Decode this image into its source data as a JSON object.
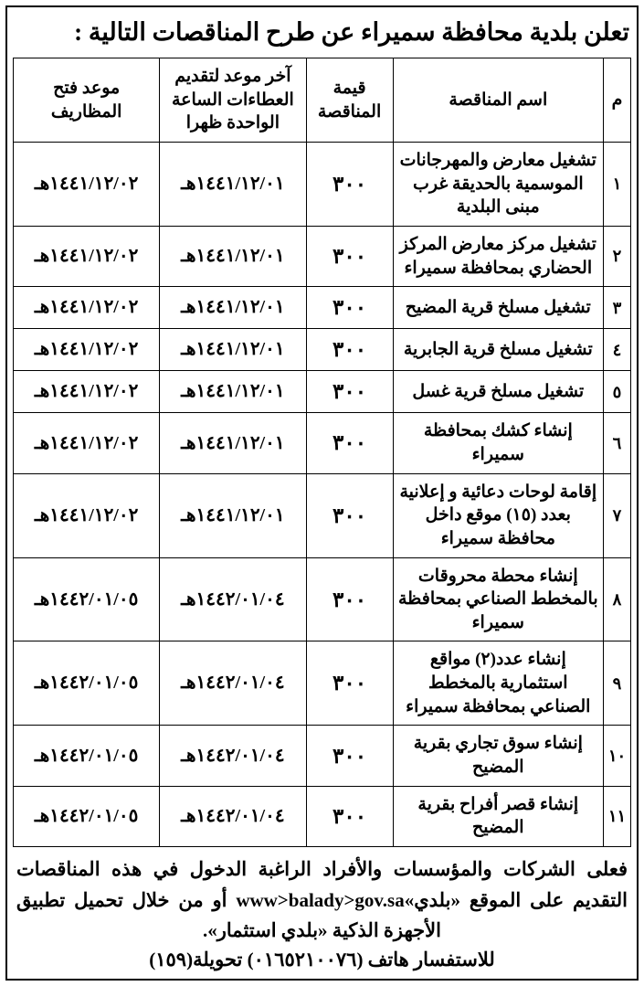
{
  "title": "تعلن بلدية محافظة سميراء عن طرح المناقصات التالية :",
  "headers": {
    "num": "م",
    "name": "اسم المناقصة",
    "value": "قيمة المناقصة",
    "deadline": "آخر موعد لتقديم العطاءات الساعة الواحدة ظهرا",
    "opening": "موعد فتح المظاريف"
  },
  "rows": [
    {
      "num": "١",
      "name": "تشغيل معارض والمهرجانات الموسمية بالحديقة غرب مبنى البلدية",
      "value": "٣٠٠",
      "deadline": "١٤٤١/١٢/٠١هـ",
      "opening": "١٤٤١/١٢/٠٢هـ"
    },
    {
      "num": "٢",
      "name": "تشغيل مركز معارض المركز الحضاري بمحافظة سميراء",
      "value": "٣٠٠",
      "deadline": "١٤٤١/١٢/٠١هـ",
      "opening": "١٤٤١/١٢/٠٢هـ"
    },
    {
      "num": "٣",
      "name": "تشغيل مسلخ قرية المضيح",
      "value": "٣٠٠",
      "deadline": "١٤٤١/١٢/٠١هـ",
      "opening": "١٤٤١/١٢/٠٢هـ"
    },
    {
      "num": "٤",
      "name": "تشغيل مسلخ قرية الجابرية",
      "value": "٣٠٠",
      "deadline": "١٤٤١/١٢/٠١هـ",
      "opening": "١٤٤١/١٢/٠٢هـ"
    },
    {
      "num": "٥",
      "name": "تشغيل مسلخ قرية غسل",
      "value": "٣٠٠",
      "deadline": "١٤٤١/١٢/٠١هـ",
      "opening": "١٤٤١/١٢/٠٢هـ"
    },
    {
      "num": "٦",
      "name": "إنشاء كشك بمحافظة سميراء",
      "value": "٣٠٠",
      "deadline": "١٤٤١/١٢/٠١هـ",
      "opening": "١٤٤١/١٢/٠٢هـ"
    },
    {
      "num": "٧",
      "name": "إقامة لوحات دعائية و إعلانية بعدد (١٥) موقع داخل محافظة سميراء",
      "value": "٣٠٠",
      "deadline": "١٤٤١/١٢/٠١هـ",
      "opening": "١٤٤١/١٢/٠٢هـ"
    },
    {
      "num": "٨",
      "name": "إنشاء محطة محروقات بالمخطط الصناعي بمحافظة سميراء",
      "value": "٣٠٠",
      "deadline": "١٤٤٢/٠١/٠٤هـ",
      "opening": "١٤٤٢/٠١/٠٥هـ"
    },
    {
      "num": "٩",
      "name": "إنشاء عدد(٢) مواقع استثمارية بالمخطط الصناعي بمحافظة سميراء",
      "value": "٣٠٠",
      "deadline": "١٤٤٢/٠١/٠٤هـ",
      "opening": "١٤٤٢/٠١/٠٥هـ"
    },
    {
      "num": "١٠",
      "name": "إنشاء سوق تجاري بقرية المضيح",
      "value": "٣٠٠",
      "deadline": "١٤٤٢/٠١/٠٤هـ",
      "opening": "١٤٤٢/٠١/٠٥هـ"
    },
    {
      "num": "١١",
      "name": "إنشاء قصر أفراح بقرية المضيح",
      "value": "٣٠٠",
      "deadline": "١٤٤٢/٠١/٠٤هـ",
      "opening": "١٤٤٢/٠١/٠٥هـ"
    }
  ],
  "footer": {
    "p1a": "فعلى الشركات والمؤسسات والأفراد الراغبة الدخول في هذه المناقصات التقديم على الموقع «بلدي»",
    "p1_url": "www>balady>gov.sa",
    "p1b": " أو من خلال تحميل تطبيق الأجهزة الذكية «بلدي استثمار».",
    "p2": "للاستفسار هاتف (٠١٦٥٢١٠٠٧٦) تحويلة(١٥٩)"
  }
}
